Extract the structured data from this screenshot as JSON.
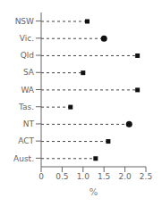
{
  "chart_data": {
    "type": "lollipop",
    "orientation": "horizontal",
    "categories": [
      "NSW",
      "Vic.",
      "Qld",
      "SA",
      "WA",
      "Tas.",
      "NT",
      "ACT",
      "Aust."
    ],
    "values": [
      1.1,
      1.5,
      2.3,
      1.0,
      2.3,
      0.7,
      2.1,
      1.6,
      1.3
    ],
    "marker": [
      "square",
      "circle",
      "square",
      "square",
      "square",
      "square",
      "circle",
      "square",
      "square"
    ],
    "line_style": "dashed",
    "color": "#111111",
    "xlim": [
      0,
      2.5
    ],
    "xticks": [
      0,
      0.5,
      {
        "value": 1.0,
        "label": "1.0"
      },
      1.5,
      {
        "value": 2.0,
        "label": "2.0"
      },
      2.5
    ],
    "xlabel": "%",
    "grid": false
  }
}
